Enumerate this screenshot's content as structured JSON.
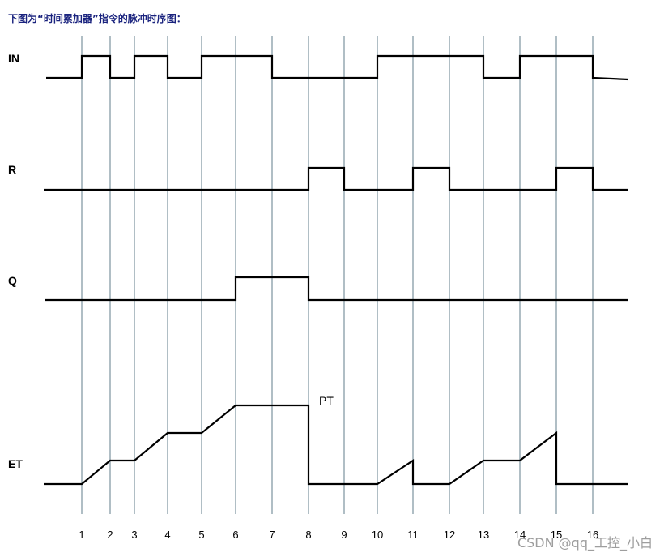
{
  "caption": "下图为“时间累加器”指令的脉冲时序图：",
  "watermark": "CSDN @qq_工控_小白",
  "diagram": {
    "signals": [
      {
        "name": "IN",
        "label": "IN"
      },
      {
        "name": "R",
        "label": "R"
      },
      {
        "name": "Q",
        "label": "Q"
      },
      {
        "name": "ET",
        "label": "ET"
      }
    ],
    "ticks": [
      "1",
      "2",
      "3",
      "4",
      "5",
      "6",
      "7",
      "8",
      "9",
      "10",
      "11",
      "12",
      "13",
      "14",
      "15",
      "16"
    ],
    "annotation": "PT",
    "timing": {
      "IN": [
        [
          0,
          0
        ],
        [
          1,
          1
        ],
        [
          2,
          0
        ],
        [
          3,
          1
        ],
        [
          4,
          0
        ],
        [
          5,
          1
        ],
        [
          7,
          0
        ],
        [
          10,
          1
        ],
        [
          13,
          0
        ],
        [
          14,
          1
        ],
        [
          16,
          0
        ]
      ],
      "R": [
        [
          0,
          0
        ],
        [
          8,
          1
        ],
        [
          9,
          0
        ],
        [
          11,
          1
        ],
        [
          12,
          0
        ],
        [
          15,
          1
        ],
        [
          16,
          0
        ]
      ],
      "Q": [
        [
          0,
          0
        ],
        [
          6,
          1
        ],
        [
          8,
          0
        ]
      ],
      "ET": [
        [
          1,
          0
        ],
        [
          2,
          1
        ],
        [
          3,
          1
        ],
        [
          4,
          2
        ],
        [
          5,
          2
        ],
        [
          6,
          3
        ],
        [
          8,
          3
        ],
        [
          8,
          0
        ],
        [
          10,
          0
        ],
        [
          11,
          1
        ],
        [
          11,
          0
        ],
        [
          12,
          0
        ],
        [
          13,
          1
        ],
        [
          14,
          1
        ],
        [
          15,
          2
        ],
        [
          15,
          0
        ]
      ]
    },
    "colors": {
      "gridline": "#b0bec5",
      "trace": "#000000"
    }
  }
}
